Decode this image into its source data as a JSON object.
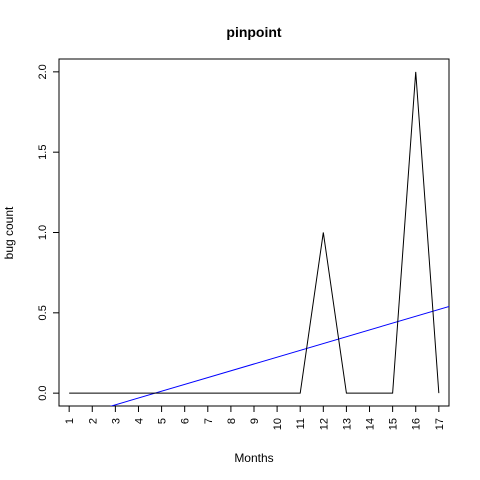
{
  "chart_data": {
    "type": "line",
    "title": "pinpoint",
    "xlabel": "Months",
    "ylabel": "bug count",
    "x": [
      1,
      2,
      3,
      4,
      5,
      6,
      7,
      8,
      9,
      10,
      11,
      12,
      13,
      14,
      15,
      16,
      17
    ],
    "x_tick_labels": [
      "1",
      "2",
      "3",
      "4",
      "5",
      "6",
      "7",
      "8",
      "9",
      "10",
      "11",
      "12",
      "13",
      "14",
      "15",
      "16",
      "17"
    ],
    "y_ticks": [
      0.0,
      0.5,
      1.0,
      1.5,
      2.0
    ],
    "y_tick_labels": [
      "0.0",
      "0.5",
      "1.0",
      "1.5",
      "2.0"
    ],
    "xlim": [
      0.56,
      17.44
    ],
    "ylim": [
      -0.08,
      2.08
    ],
    "grid": false,
    "series": [
      {
        "values": [
          0,
          0,
          0,
          0,
          0,
          0,
          0,
          0,
          0,
          0,
          0,
          1,
          0,
          0,
          0,
          2,
          0
        ],
        "color": "#000000"
      }
    ],
    "trend_line": {
      "intercept": -0.2,
      "slope": 0.0424,
      "color": "#0000ff"
    }
  }
}
